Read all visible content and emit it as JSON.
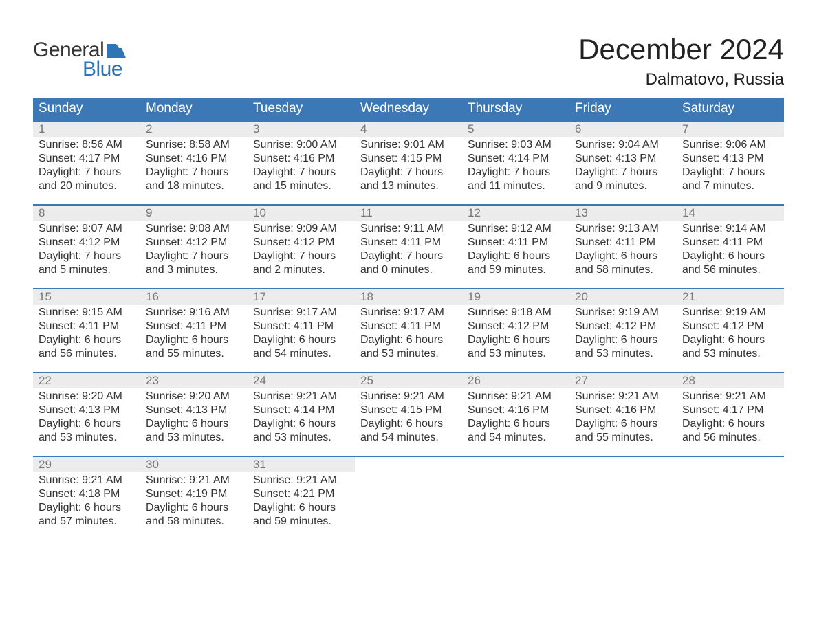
{
  "logo": {
    "word1": "General",
    "word2": "Blue"
  },
  "title": "December 2024",
  "location": "Dalmatovo, Russia",
  "colors": {
    "header_bg": "#3b78b5",
    "header_text": "#ffffff",
    "daynum_bg": "#ececec",
    "daynum_border": "#3b78b5",
    "daynum_text": "#777777",
    "body_text": "#333333",
    "logo_blue": "#2e75b6"
  },
  "dow": [
    "Sunday",
    "Monday",
    "Tuesday",
    "Wednesday",
    "Thursday",
    "Friday",
    "Saturday"
  ],
  "weeks": [
    [
      {
        "n": "1",
        "sr": "Sunrise: 8:56 AM",
        "ss": "Sunset: 4:17 PM",
        "d1": "Daylight: 7 hours",
        "d2": "and 20 minutes."
      },
      {
        "n": "2",
        "sr": "Sunrise: 8:58 AM",
        "ss": "Sunset: 4:16 PM",
        "d1": "Daylight: 7 hours",
        "d2": "and 18 minutes."
      },
      {
        "n": "3",
        "sr": "Sunrise: 9:00 AM",
        "ss": "Sunset: 4:16 PM",
        "d1": "Daylight: 7 hours",
        "d2": "and 15 minutes."
      },
      {
        "n": "4",
        "sr": "Sunrise: 9:01 AM",
        "ss": "Sunset: 4:15 PM",
        "d1": "Daylight: 7 hours",
        "d2": "and 13 minutes."
      },
      {
        "n": "5",
        "sr": "Sunrise: 9:03 AM",
        "ss": "Sunset: 4:14 PM",
        "d1": "Daylight: 7 hours",
        "d2": "and 11 minutes."
      },
      {
        "n": "6",
        "sr": "Sunrise: 9:04 AM",
        "ss": "Sunset: 4:13 PM",
        "d1": "Daylight: 7 hours",
        "d2": "and 9 minutes."
      },
      {
        "n": "7",
        "sr": "Sunrise: 9:06 AM",
        "ss": "Sunset: 4:13 PM",
        "d1": "Daylight: 7 hours",
        "d2": "and 7 minutes."
      }
    ],
    [
      {
        "n": "8",
        "sr": "Sunrise: 9:07 AM",
        "ss": "Sunset: 4:12 PM",
        "d1": "Daylight: 7 hours",
        "d2": "and 5 minutes."
      },
      {
        "n": "9",
        "sr": "Sunrise: 9:08 AM",
        "ss": "Sunset: 4:12 PM",
        "d1": "Daylight: 7 hours",
        "d2": "and 3 minutes."
      },
      {
        "n": "10",
        "sr": "Sunrise: 9:09 AM",
        "ss": "Sunset: 4:12 PM",
        "d1": "Daylight: 7 hours",
        "d2": "and 2 minutes."
      },
      {
        "n": "11",
        "sr": "Sunrise: 9:11 AM",
        "ss": "Sunset: 4:11 PM",
        "d1": "Daylight: 7 hours",
        "d2": "and 0 minutes."
      },
      {
        "n": "12",
        "sr": "Sunrise: 9:12 AM",
        "ss": "Sunset: 4:11 PM",
        "d1": "Daylight: 6 hours",
        "d2": "and 59 minutes."
      },
      {
        "n": "13",
        "sr": "Sunrise: 9:13 AM",
        "ss": "Sunset: 4:11 PM",
        "d1": "Daylight: 6 hours",
        "d2": "and 58 minutes."
      },
      {
        "n": "14",
        "sr": "Sunrise: 9:14 AM",
        "ss": "Sunset: 4:11 PM",
        "d1": "Daylight: 6 hours",
        "d2": "and 56 minutes."
      }
    ],
    [
      {
        "n": "15",
        "sr": "Sunrise: 9:15 AM",
        "ss": "Sunset: 4:11 PM",
        "d1": "Daylight: 6 hours",
        "d2": "and 56 minutes."
      },
      {
        "n": "16",
        "sr": "Sunrise: 9:16 AM",
        "ss": "Sunset: 4:11 PM",
        "d1": "Daylight: 6 hours",
        "d2": "and 55 minutes."
      },
      {
        "n": "17",
        "sr": "Sunrise: 9:17 AM",
        "ss": "Sunset: 4:11 PM",
        "d1": "Daylight: 6 hours",
        "d2": "and 54 minutes."
      },
      {
        "n": "18",
        "sr": "Sunrise: 9:17 AM",
        "ss": "Sunset: 4:11 PM",
        "d1": "Daylight: 6 hours",
        "d2": "and 53 minutes."
      },
      {
        "n": "19",
        "sr": "Sunrise: 9:18 AM",
        "ss": "Sunset: 4:12 PM",
        "d1": "Daylight: 6 hours",
        "d2": "and 53 minutes."
      },
      {
        "n": "20",
        "sr": "Sunrise: 9:19 AM",
        "ss": "Sunset: 4:12 PM",
        "d1": "Daylight: 6 hours",
        "d2": "and 53 minutes."
      },
      {
        "n": "21",
        "sr": "Sunrise: 9:19 AM",
        "ss": "Sunset: 4:12 PM",
        "d1": "Daylight: 6 hours",
        "d2": "and 53 minutes."
      }
    ],
    [
      {
        "n": "22",
        "sr": "Sunrise: 9:20 AM",
        "ss": "Sunset: 4:13 PM",
        "d1": "Daylight: 6 hours",
        "d2": "and 53 minutes."
      },
      {
        "n": "23",
        "sr": "Sunrise: 9:20 AM",
        "ss": "Sunset: 4:13 PM",
        "d1": "Daylight: 6 hours",
        "d2": "and 53 minutes."
      },
      {
        "n": "24",
        "sr": "Sunrise: 9:21 AM",
        "ss": "Sunset: 4:14 PM",
        "d1": "Daylight: 6 hours",
        "d2": "and 53 minutes."
      },
      {
        "n": "25",
        "sr": "Sunrise: 9:21 AM",
        "ss": "Sunset: 4:15 PM",
        "d1": "Daylight: 6 hours",
        "d2": "and 54 minutes."
      },
      {
        "n": "26",
        "sr": "Sunrise: 9:21 AM",
        "ss": "Sunset: 4:16 PM",
        "d1": "Daylight: 6 hours",
        "d2": "and 54 minutes."
      },
      {
        "n": "27",
        "sr": "Sunrise: 9:21 AM",
        "ss": "Sunset: 4:16 PM",
        "d1": "Daylight: 6 hours",
        "d2": "and 55 minutes."
      },
      {
        "n": "28",
        "sr": "Sunrise: 9:21 AM",
        "ss": "Sunset: 4:17 PM",
        "d1": "Daylight: 6 hours",
        "d2": "and 56 minutes."
      }
    ],
    [
      {
        "n": "29",
        "sr": "Sunrise: 9:21 AM",
        "ss": "Sunset: 4:18 PM",
        "d1": "Daylight: 6 hours",
        "d2": "and 57 minutes."
      },
      {
        "n": "30",
        "sr": "Sunrise: 9:21 AM",
        "ss": "Sunset: 4:19 PM",
        "d1": "Daylight: 6 hours",
        "d2": "and 58 minutes."
      },
      {
        "n": "31",
        "sr": "Sunrise: 9:21 AM",
        "ss": "Sunset: 4:21 PM",
        "d1": "Daylight: 6 hours",
        "d2": "and 59 minutes."
      },
      {
        "empty": true
      },
      {
        "empty": true
      },
      {
        "empty": true
      },
      {
        "empty": true
      }
    ]
  ]
}
